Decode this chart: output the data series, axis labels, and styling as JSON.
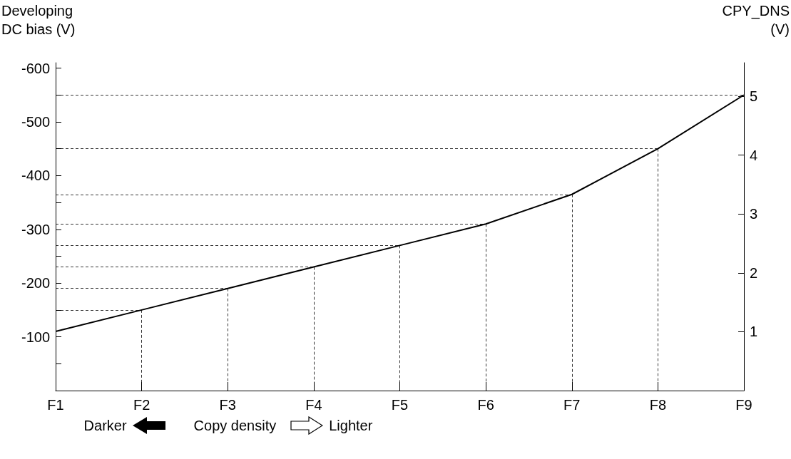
{
  "chart_data": {
    "type": "line",
    "categories": [
      "F1",
      "F2",
      "F3",
      "F4",
      "F5",
      "F6",
      "F7",
      "F8",
      "F9"
    ],
    "series": [
      {
        "color": "#000000",
        "values": [
          -110,
          -150,
          -190,
          -230,
          -270,
          -310,
          -365,
          -450,
          -550
        ]
      }
    ],
    "ylabel": "Developing\nDC bias (V)",
    "y2label": "CPY_DNS\n(V)",
    "xlabel": "Copy density",
    "annotations": [
      "Darker",
      "Lighter"
    ],
    "ylim": [
      0,
      -610
    ],
    "yticks": [
      {
        "value": -50,
        "label": null
      },
      -100,
      {
        "value": -150,
        "label": null
      },
      -200,
      {
        "value": -250,
        "label": null
      },
      -300,
      {
        "value": -350,
        "label": null
      },
      -400,
      {
        "value": -450,
        "label": null
      },
      -500,
      {
        "value": -550,
        "label": null
      },
      -600
    ],
    "y2lim": [
      0,
      5.57
    ],
    "y2ticks": [
      1,
      2,
      3,
      4,
      5
    ],
    "ref_lines": [
      {
        "axis": "y",
        "value": -150,
        "color": "#000000",
        "line_style": "dashed"
      },
      {
        "axis": "y",
        "value": -190,
        "color": "#000000",
        "line_style": "dashed"
      },
      {
        "axis": "y",
        "value": -230,
        "color": "#000000",
        "line_style": "dashed"
      },
      {
        "axis": "y",
        "value": -270,
        "color": "#000000",
        "line_style": "dashed"
      },
      {
        "axis": "y",
        "value": -310,
        "color": "#000000",
        "line_style": "dashed"
      },
      {
        "axis": "y",
        "value": -365,
        "color": "#000000",
        "line_style": "dashed"
      },
      {
        "axis": "y",
        "value": -450,
        "color": "#000000",
        "line_style": "dashed"
      },
      {
        "axis": "y",
        "value": -550,
        "color": "#000000",
        "line_style": "dashed"
      },
      {
        "axis": "x",
        "value": "F2",
        "color": "#000000",
        "line_style": "dashed"
      },
      {
        "axis": "x",
        "value": "F3",
        "color": "#000000",
        "line_style": "dashed"
      },
      {
        "axis": "x",
        "value": "F4",
        "color": "#000000",
        "line_style": "dashed"
      },
      {
        "axis": "x",
        "value": "F5",
        "color": "#000000",
        "line_style": "dashed"
      },
      {
        "axis": "x",
        "value": "F6",
        "color": "#000000",
        "line_style": "dashed"
      },
      {
        "axis": "x",
        "value": "F7",
        "color": "#000000",
        "line_style": "dashed"
      },
      {
        "axis": "x",
        "value": "F8",
        "color": "#000000",
        "line_style": "dashed"
      }
    ],
    "marker": "none",
    "line_style": "solid"
  }
}
